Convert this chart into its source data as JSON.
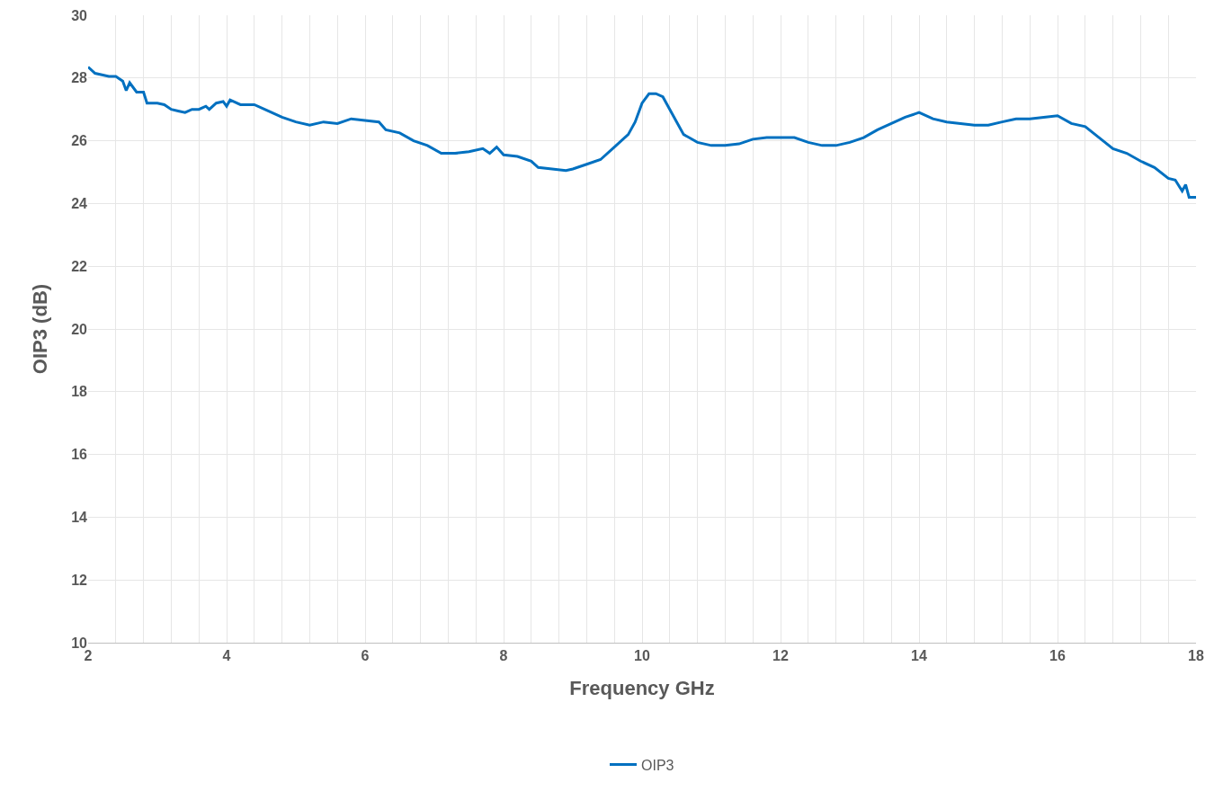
{
  "chart_data": {
    "type": "line",
    "xlabel": "Frequency GHz",
    "ylabel": "OIP3 (dB)",
    "x": [
      2.0,
      2.1,
      2.3,
      2.4,
      2.5,
      2.55,
      2.6,
      2.7,
      2.8,
      2.85,
      3.0,
      3.1,
      3.2,
      3.3,
      3.4,
      3.5,
      3.6,
      3.7,
      3.75,
      3.85,
      3.95,
      4.0,
      4.05,
      4.2,
      4.4,
      4.6,
      4.8,
      5.0,
      5.2,
      5.4,
      5.6,
      5.8,
      6.0,
      6.2,
      6.3,
      6.5,
      6.7,
      6.9,
      7.1,
      7.3,
      7.5,
      7.7,
      7.8,
      7.9,
      8.0,
      8.2,
      8.4,
      8.5,
      8.7,
      8.9,
      9.0,
      9.2,
      9.4,
      9.6,
      9.8,
      9.9,
      10.0,
      10.1,
      10.2,
      10.3,
      10.4,
      10.5,
      10.6,
      10.8,
      11.0,
      11.2,
      11.4,
      11.6,
      11.8,
      12.0,
      12.2,
      12.4,
      12.6,
      12.8,
      13.0,
      13.2,
      13.4,
      13.6,
      13.8,
      14.0,
      14.2,
      14.4,
      14.6,
      14.8,
      15.0,
      15.2,
      15.4,
      15.6,
      15.8,
      16.0,
      16.2,
      16.4,
      16.6,
      16.8,
      17.0,
      17.2,
      17.4,
      17.6,
      17.7,
      17.8,
      17.85,
      17.9,
      18.0
    ],
    "series": [
      {
        "name": "OIP3",
        "color": "#0070c0",
        "values": [
          28.35,
          28.15,
          28.05,
          28.05,
          27.9,
          27.6,
          27.85,
          27.55,
          27.55,
          27.2,
          27.2,
          27.15,
          27.0,
          26.95,
          26.9,
          27.0,
          27.0,
          27.1,
          27.0,
          27.2,
          27.25,
          27.1,
          27.3,
          27.15,
          27.15,
          26.95,
          26.75,
          26.6,
          26.5,
          26.6,
          26.55,
          26.7,
          26.65,
          26.6,
          26.35,
          26.25,
          26.0,
          25.85,
          25.6,
          25.6,
          25.65,
          25.75,
          25.6,
          25.8,
          25.55,
          25.5,
          25.35,
          25.15,
          25.1,
          25.05,
          25.1,
          25.25,
          25.4,
          25.8,
          26.2,
          26.6,
          27.2,
          27.5,
          27.5,
          27.4,
          27.0,
          26.6,
          26.2,
          25.95,
          25.85,
          25.85,
          25.9,
          26.05,
          26.1,
          26.1,
          26.1,
          25.95,
          25.85,
          25.85,
          25.95,
          26.1,
          26.35,
          26.55,
          26.75,
          26.9,
          26.7,
          26.6,
          26.55,
          26.5,
          26.5,
          26.6,
          26.7,
          26.7,
          26.75,
          26.8,
          26.55,
          26.45,
          26.1,
          25.75,
          25.6,
          25.35,
          25.15,
          24.8,
          24.75,
          24.4,
          24.6,
          24.2,
          24.2
        ]
      }
    ],
    "xlim": [
      2,
      18
    ],
    "xticks": [
      2,
      {
        "value": 2.4,
        "label": null
      },
      {
        "value": 2.8,
        "label": null
      },
      {
        "value": 3.2,
        "label": null
      },
      {
        "value": 3.6,
        "label": null
      },
      4,
      {
        "value": 4.4,
        "label": null
      },
      {
        "value": 4.8,
        "label": null
      },
      {
        "value": 5.2,
        "label": null
      },
      {
        "value": 5.6,
        "label": null
      },
      6,
      {
        "value": 6.4,
        "label": null
      },
      {
        "value": 6.8,
        "label": null
      },
      {
        "value": 7.2,
        "label": null
      },
      {
        "value": 7.6,
        "label": null
      },
      8,
      {
        "value": 8.4,
        "label": null
      },
      {
        "value": 8.8,
        "label": null
      },
      {
        "value": 9.2,
        "label": null
      },
      {
        "value": 9.6,
        "label": null
      },
      10,
      {
        "value": 10.4,
        "label": null
      },
      {
        "value": 10.8,
        "label": null
      },
      {
        "value": 11.2,
        "label": null
      },
      {
        "value": 11.6,
        "label": null
      },
      12,
      {
        "value": 12.4,
        "label": null
      },
      {
        "value": 12.8,
        "label": null
      },
      {
        "value": 13.2,
        "label": null
      },
      {
        "value": 13.6,
        "label": null
      },
      14,
      {
        "value": 14.4,
        "label": null
      },
      {
        "value": 14.8,
        "label": null
      },
      {
        "value": 15.2,
        "label": null
      },
      {
        "value": 15.6,
        "label": null
      },
      16,
      {
        "value": 16.4,
        "label": null
      },
      {
        "value": 16.8,
        "label": null
      },
      {
        "value": 17.2,
        "label": null
      },
      {
        "value": 17.6,
        "label": null
      },
      18
    ],
    "ylim": [
      10,
      30
    ],
    "yticks": [
      10,
      12,
      14,
      16,
      18,
      20,
      22,
      24,
      26,
      28,
      30
    ],
    "grid": true,
    "legend": "bottom",
    "line_style": "solid",
    "marker": "none"
  }
}
